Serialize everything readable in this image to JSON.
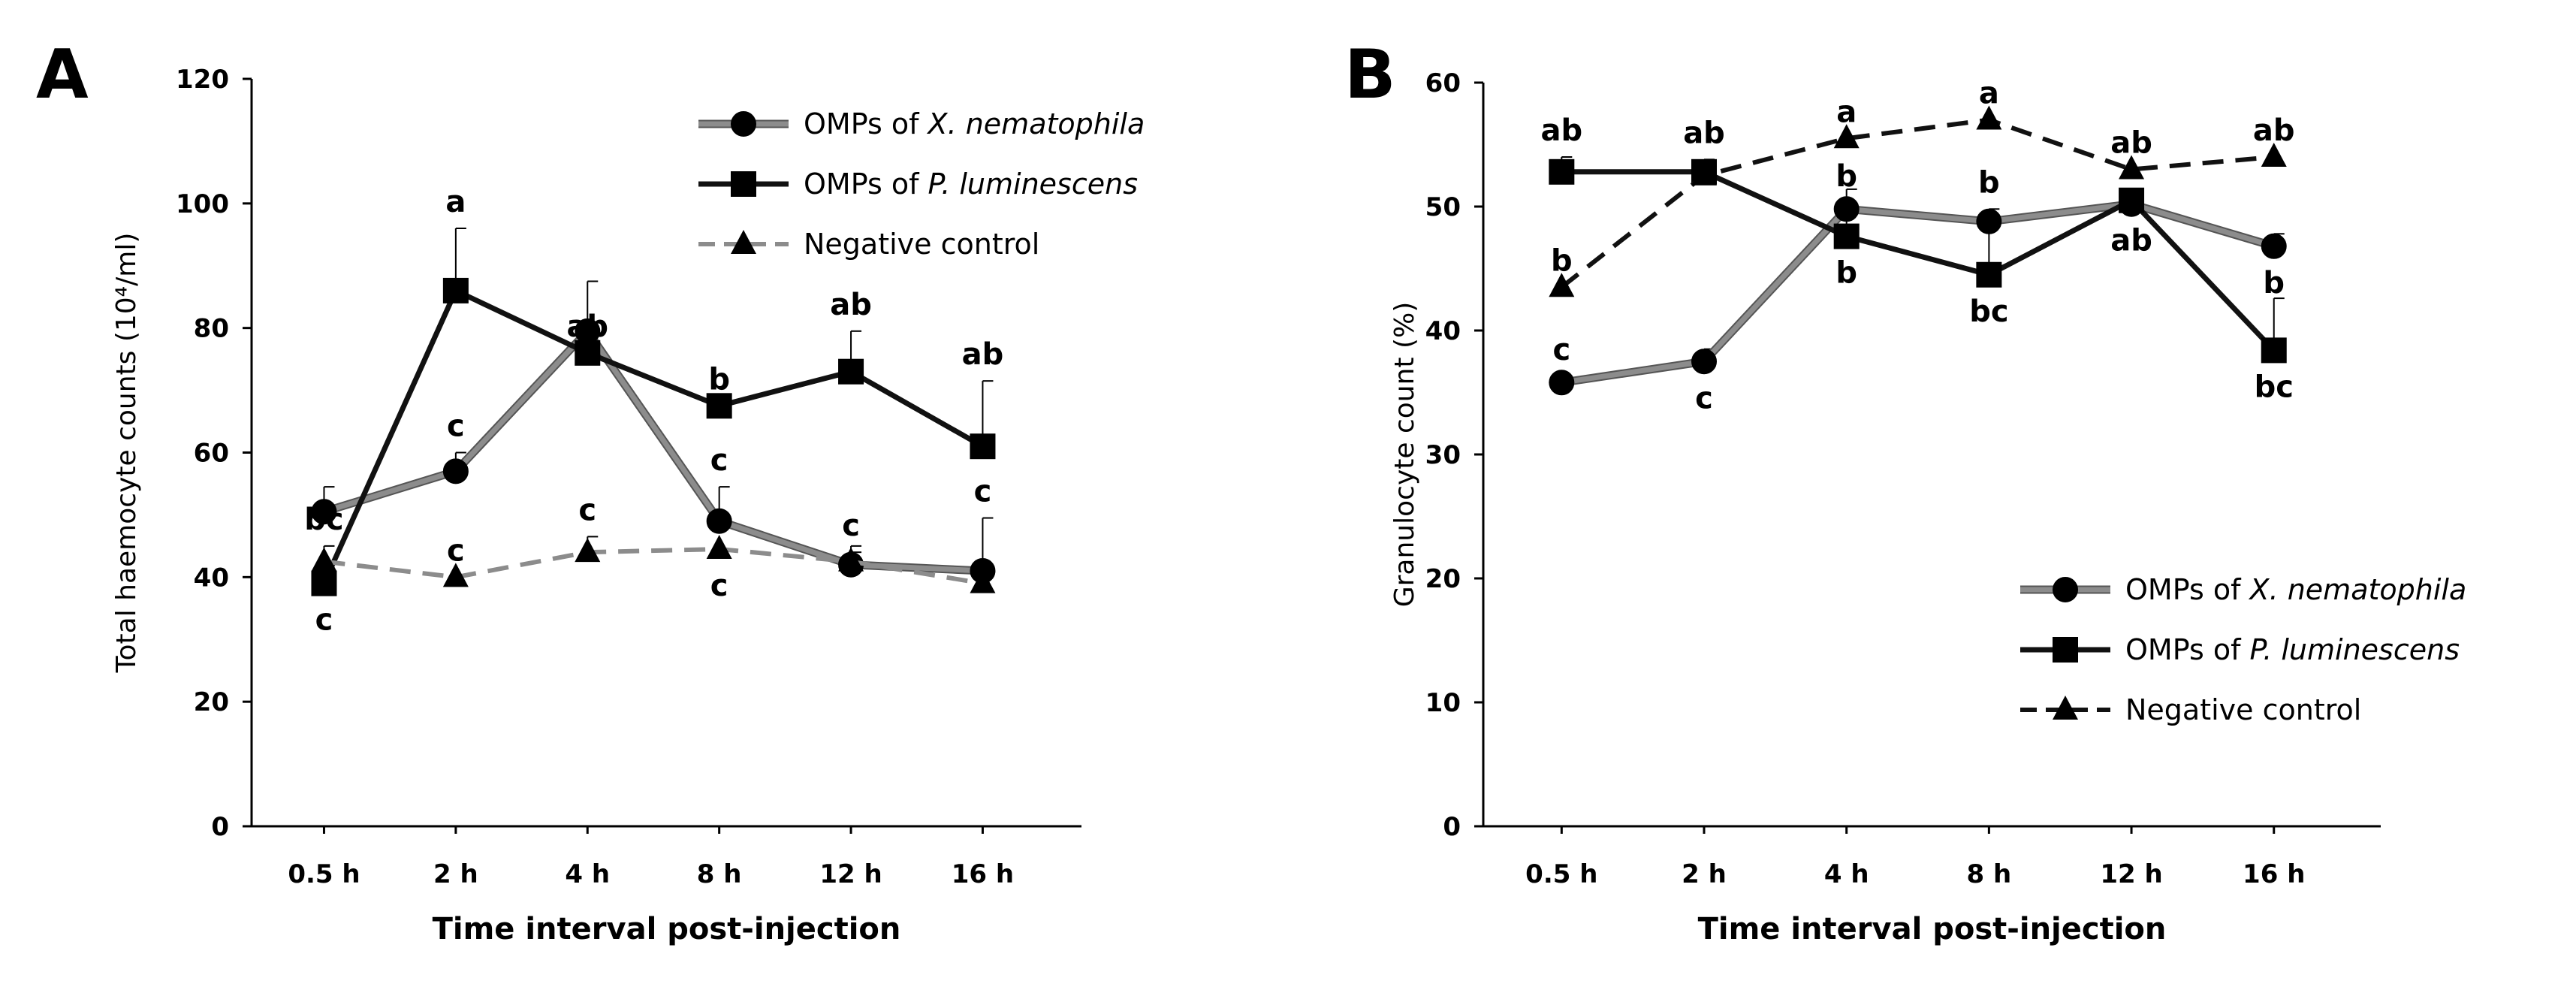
{
  "chart_data": [
    {
      "panel": "A",
      "type": "line",
      "ylabel": "Total haemocyte counts (10⁴/ml)",
      "xlabel": "Time interval post-injection",
      "categories": [
        "0.5 h",
        "2 h",
        "4 h",
        "8 h",
        "12 h",
        "16 h"
      ],
      "ylim": [
        0,
        120
      ],
      "yticks": [
        0,
        20,
        40,
        60,
        80,
        100,
        120
      ],
      "grid": false,
      "legend_position": "top-right",
      "series": [
        {
          "name_prefix": "OMPs of ",
          "name_species": "X. nematophila",
          "color": "#8c8c8c",
          "marker": "circle",
          "line": "solid",
          "values": [
            50.5,
            57,
            79.5,
            49,
            42,
            41
          ],
          "errors": [
            4,
            3,
            8,
            5.5,
            2,
            8.5
          ],
          "sig": [
            {
              "label": "",
              "pos": "above"
            },
            {
              "label": "c",
              "pos": "above"
            },
            {
              "label": "",
              "pos": "above"
            },
            {
              "label": "c",
              "pos": "above"
            },
            {
              "label": "c",
              "pos": "above"
            },
            {
              "label": "c",
              "pos": "above"
            }
          ]
        },
        {
          "name_prefix": "OMPs of ",
          "name_species": "P. luminescens",
          "color": "#111111",
          "marker": "square",
          "line": "solid",
          "values": [
            39,
            86,
            76,
            67.5,
            73,
            61
          ],
          "errors": [
            0,
            10,
            0,
            0,
            6.5,
            10.5
          ],
          "sig": [
            {
              "label": "c",
              "pos": "below"
            },
            {
              "label": "a",
              "pos": "above"
            },
            {
              "label": "ab",
              "pos": "above"
            },
            {
              "label": "b",
              "pos": "above"
            },
            {
              "label": "ab",
              "pos": "above"
            },
            {
              "label": "ab",
              "pos": "above"
            }
          ]
        },
        {
          "name_prefix": "",
          "name_species": "Negative control",
          "color": "#8c8c8c",
          "marker": "triangle",
          "line": "dashed",
          "values": [
            42.5,
            40,
            44,
            44.5,
            42.5,
            39
          ],
          "errors": [
            2.5,
            0,
            2.5,
            0,
            2.5,
            0
          ],
          "sig": [
            {
              "label": "bc",
              "pos": "above"
            },
            {
              "label": "c",
              "pos": "above"
            },
            {
              "label": "c",
              "pos": "above"
            },
            {
              "label": "c",
              "pos": "below"
            },
            {
              "label": "",
              "pos": "above"
            },
            {
              "label": "",
              "pos": "above"
            }
          ]
        }
      ]
    },
    {
      "panel": "B",
      "type": "line",
      "ylabel": "Granulocyte count (%)",
      "xlabel": "Time interval post-injection",
      "categories": [
        "0.5 h",
        "2 h",
        "4 h",
        "8 h",
        "12 h",
        "16 h"
      ],
      "ylim": [
        0,
        60
      ],
      "yticks": [
        0,
        10,
        20,
        30,
        40,
        50,
        60
      ],
      "grid": false,
      "legend_position": "bottom-right",
      "series": [
        {
          "name_prefix": "OMPs of ",
          "name_species": "X. nematophila",
          "color": "#8c8c8c",
          "marker": "circle",
          "line": "solid",
          "values": [
            35.8,
            37.5,
            49.8,
            48.8,
            50.2,
            46.8
          ],
          "errors": [
            0.5,
            1,
            0.5,
            1,
            1,
            1
          ],
          "sig": [
            {
              "label": "c",
              "pos": "above"
            },
            {
              "label": "c",
              "pos": "below"
            },
            {
              "label": "b",
              "pos": "above"
            },
            {
              "label": "b",
              "pos": "above"
            },
            {
              "label": "ab",
              "pos": "below"
            },
            {
              "label": "b",
              "pos": "below"
            }
          ]
        },
        {
          "name_prefix": "OMPs of ",
          "name_species": "P. luminescens",
          "color": "#111111",
          "marker": "square",
          "line": "solid",
          "values": [
            52.8,
            52.8,
            47.6,
            44.5,
            50.5,
            38.4
          ],
          "errors": [
            1.2,
            1,
            3.8,
            3.8,
            0,
            4.2
          ],
          "sig": [
            {
              "label": "ab",
              "pos": "above"
            },
            {
              "label": "ab",
              "pos": "above"
            },
            {
              "label": "b",
              "pos": "below"
            },
            {
              "label": "bc",
              "pos": "below"
            },
            {
              "label": "",
              "pos": "above"
            },
            {
              "label": "bc",
              "pos": "below"
            }
          ]
        },
        {
          "name_prefix": "",
          "name_species": "Negative control",
          "color": "#111111",
          "marker": "triangle",
          "line": "dashed",
          "values": [
            43.5,
            52.5,
            55.5,
            57,
            53,
            54
          ],
          "errors": [
            0,
            0,
            0,
            0,
            0,
            0
          ],
          "sig": [
            {
              "label": "b",
              "pos": "above"
            },
            {
              "label": "",
              "pos": "above"
            },
            {
              "label": "a",
              "pos": "above"
            },
            {
              "label": "a",
              "pos": "above"
            },
            {
              "label": "ab",
              "pos": "above"
            },
            {
              "label": "ab",
              "pos": "above"
            }
          ]
        }
      ]
    }
  ]
}
